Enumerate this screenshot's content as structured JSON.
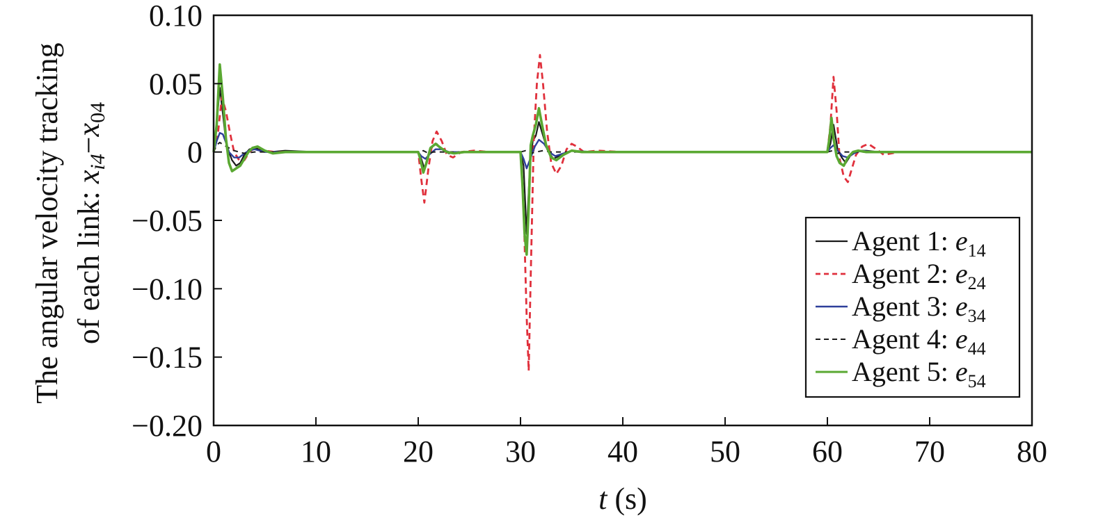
{
  "chart_data": {
    "type": "line",
    "title": "",
    "xlabel": {
      "var": "t",
      "unit": " (s)"
    },
    "ylabel": {
      "line1": "The angular velocity tracking",
      "line2_prefix": "of each link: ",
      "line2_a": "x",
      "line2_a_sub": "i4",
      "line2_minus": "−",
      "line2_b": "x",
      "line2_b_sub": "04"
    },
    "xlim": [
      0,
      80
    ],
    "ylim": [
      -0.2,
      0.1
    ],
    "x_ticks": [
      0,
      10,
      20,
      30,
      40,
      50,
      60,
      70,
      80
    ],
    "x_tick_labels": [
      "0",
      "10",
      "20",
      "30",
      "40",
      "50",
      "60",
      "70",
      "80"
    ],
    "y_ticks": [
      0.1,
      0.05,
      0,
      -0.05,
      -0.1,
      -0.15,
      -0.2
    ],
    "y_tick_labels": [
      "0.10",
      "0.05",
      "0",
      "−0.05",
      "−0.10",
      "−0.15",
      "−0.20"
    ],
    "grid": false,
    "legend_position": "bottom-right",
    "series": [
      {
        "name": "Agent 1: ",
        "name_var": "e",
        "name_sub": "14",
        "color": "#1a1a1a",
        "dash": "",
        "width": 2.2,
        "x": [
          0,
          0.3,
          0.6,
          0.9,
          1.2,
          1.5,
          1.8,
          2.2,
          2.6,
          3.0,
          3.5,
          4.0,
          4.5,
          5.5,
          7,
          10,
          20,
          20.3,
          20.6,
          21.0,
          21.4,
          21.8,
          22.3,
          23.0,
          24,
          30,
          30.3,
          30.6,
          30.9,
          31.2,
          31.5,
          31.8,
          32.2,
          32.6,
          33.2,
          34.0,
          35.0,
          36.0,
          40,
          60,
          60.3,
          60.6,
          61.0,
          61.4,
          61.8,
          62.3,
          63.0,
          63.8,
          65,
          80
        ],
        "y": [
          0,
          0.02,
          0.047,
          0.028,
          0.008,
          0.0,
          -0.006,
          -0.01,
          -0.008,
          -0.002,
          0.002,
          0.003,
          0.002,
          0.0,
          0.001,
          0,
          0,
          -0.005,
          -0.012,
          -0.002,
          0.004,
          0.006,
          0.002,
          -0.001,
          0,
          0,
          -0.01,
          -0.06,
          -0.012,
          0.008,
          0.012,
          0.022,
          0.012,
          0.002,
          -0.005,
          -0.002,
          0.001,
          0,
          0,
          0,
          0.006,
          0.02,
          0.002,
          -0.004,
          -0.008,
          -0.002,
          0.001,
          0.001,
          0,
          0
        ]
      },
      {
        "name": "Agent 2: ",
        "name_var": "e",
        "name_sub": "24",
        "color": "#e0303c",
        "dash": "9 6",
        "width": 2.8,
        "x": [
          0,
          0.4,
          0.8,
          1.2,
          1.6,
          2.0,
          2.5,
          3.0,
          3.5,
          4.0,
          4.5,
          5.0,
          6,
          8,
          20,
          20.3,
          20.6,
          21.0,
          21.4,
          21.8,
          22.3,
          22.8,
          23.4,
          24.2,
          25.5,
          27,
          30,
          30.3,
          30.6,
          30.8,
          31.0,
          31.3,
          31.6,
          31.9,
          32.2,
          32.6,
          33.0,
          33.5,
          34.0,
          34.5,
          35.0,
          35.5,
          36.2,
          37.5,
          40,
          60,
          60.3,
          60.6,
          60.9,
          61.2,
          61.6,
          62.0,
          62.4,
          62.8,
          63.4,
          64.0,
          64.8,
          65.5,
          67,
          80
        ],
        "y": [
          0,
          0.012,
          0.04,
          0.03,
          0.014,
          0.0,
          -0.006,
          -0.006,
          0.0,
          0.003,
          0.003,
          0.001,
          0.0,
          0.0,
          0,
          -0.02,
          -0.037,
          -0.012,
          0.008,
          0.015,
          0.008,
          -0.002,
          -0.004,
          0.0,
          0.001,
          0,
          0,
          -0.04,
          -0.12,
          -0.16,
          -0.09,
          0.01,
          0.05,
          0.071,
          0.05,
          0.015,
          -0.008,
          -0.016,
          -0.01,
          0.002,
          0.006,
          0.004,
          0.0,
          0.001,
          0,
          0,
          0.02,
          0.055,
          0.03,
          -0.005,
          -0.018,
          -0.022,
          -0.012,
          -0.002,
          0.004,
          0.006,
          0.002,
          -0.002,
          0.0,
          0
        ]
      },
      {
        "name": "Agent 3: ",
        "name_var": "e",
        "name_sub": "34",
        "color": "#2e3f9a",
        "dash": "",
        "width": 2.4,
        "x": [
          0,
          0.3,
          0.6,
          0.9,
          1.2,
          1.5,
          2.0,
          2.5,
          3.0,
          3.5,
          4.0,
          5.0,
          7,
          20,
          20.3,
          20.7,
          21.2,
          21.7,
          22.3,
          23.0,
          24,
          30,
          30.3,
          30.6,
          31.0,
          31.4,
          31.8,
          32.3,
          32.8,
          33.4,
          34.2,
          35.0,
          37,
          60,
          60.3,
          60.6,
          61.0,
          61.5,
          62.0,
          62.6,
          63.3,
          64.5,
          80
        ],
        "y": [
          0,
          0.008,
          0.014,
          0.013,
          0.007,
          0.0,
          -0.004,
          -0.004,
          -0.001,
          0.001,
          0.002,
          0.0,
          0.0,
          0,
          -0.003,
          -0.005,
          -0.001,
          0.002,
          0.002,
          0.0,
          0,
          0,
          -0.005,
          -0.012,
          -0.004,
          0.004,
          0.009,
          0.006,
          0.0,
          -0.003,
          -0.001,
          0.001,
          0,
          0,
          0.003,
          0.005,
          0.001,
          -0.003,
          -0.004,
          -0.001,
          0.001,
          0.0,
          0
        ]
      },
      {
        "name": "Agent 4: ",
        "name_var": "e",
        "name_sub": "44",
        "color": "#1a1a1a",
        "dash": "7 6",
        "width": 2.0,
        "x": [
          0,
          0.3,
          0.6,
          1.0,
          1.5,
          2.0,
          2.5,
          3.0,
          4.0,
          6,
          20,
          20.5,
          21.0,
          21.5,
          22.5,
          30,
          30.5,
          31.0,
          31.5,
          32.2,
          33.0,
          34.0,
          60,
          60.5,
          61.0,
          61.5,
          62.5,
          80
        ],
        "y": [
          0,
          0.005,
          0.007,
          0.005,
          0.003,
          0.001,
          0.0,
          -0.001,
          0.0,
          0.0,
          0,
          0.001,
          -0.001,
          0.0,
          0.0,
          0,
          0.001,
          -0.001,
          0.0,
          0.001,
          0.0,
          0.0,
          0,
          0.001,
          -0.001,
          0.0,
          0.0,
          0
        ]
      },
      {
        "name": "Agent 5: ",
        "name_var": "e",
        "name_sub": "54",
        "color": "#5aa832",
        "dash": "",
        "width": 3.6,
        "x": [
          0,
          0.3,
          0.6,
          0.9,
          1.2,
          1.5,
          1.8,
          2.2,
          2.6,
          3.0,
          3.4,
          3.8,
          4.3,
          5.0,
          5.8,
          7,
          9,
          20,
          20.2,
          20.5,
          20.8,
          21.2,
          21.7,
          22.2,
          22.8,
          23.5,
          24.5,
          30,
          30.2,
          30.4,
          30.6,
          30.8,
          31.0,
          31.2,
          31.5,
          31.8,
          32.1,
          32.5,
          33.0,
          33.5,
          34.2,
          35.0,
          36.0,
          60,
          60.2,
          60.4,
          60.6,
          60.9,
          61.2,
          61.6,
          62.0,
          62.5,
          63.0,
          63.8,
          65,
          80
        ],
        "y": [
          0,
          0.02,
          0.064,
          0.04,
          0.01,
          -0.008,
          -0.014,
          -0.012,
          -0.01,
          -0.005,
          0.0,
          0.003,
          0.004,
          0.001,
          -0.001,
          0.0,
          0.0,
          0,
          -0.005,
          -0.015,
          -0.008,
          0.003,
          0.006,
          0.003,
          0.0,
          -0.001,
          0,
          0,
          -0.025,
          -0.06,
          -0.075,
          -0.04,
          0.005,
          0.012,
          0.02,
          0.032,
          0.02,
          0.005,
          -0.004,
          -0.006,
          -0.002,
          0.001,
          0,
          0,
          0.01,
          0.025,
          0.01,
          -0.003,
          -0.008,
          -0.01,
          -0.004,
          0.0,
          0.001,
          0.0,
          0,
          0
        ]
      }
    ]
  }
}
